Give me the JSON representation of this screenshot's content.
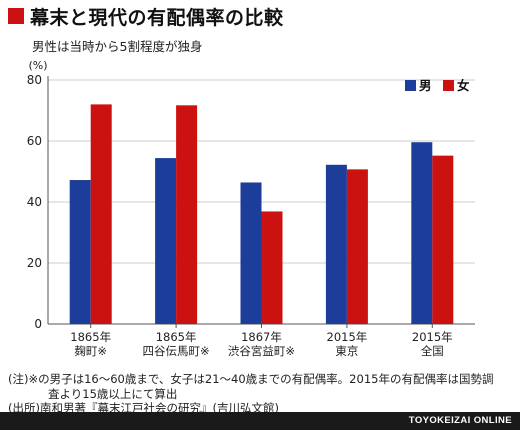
{
  "title": "幕末と現代の有配偶率の比較",
  "subtitle": "男性は当時から5割程度が独身",
  "colors": {
    "male": "#1c3d9a",
    "female": "#cc1111",
    "title_mark": "#cc1111",
    "axis": "#555555",
    "grid": "#cccccc"
  },
  "chart_data": {
    "type": "bar",
    "unit_label": "(%)",
    "ylim": [
      0,
      80
    ],
    "yticks": [
      0,
      20,
      40,
      60,
      80
    ],
    "grid": true,
    "legend_position": "top-right",
    "categories": [
      [
        "1865年",
        "麹町※"
      ],
      [
        "1865年",
        "四谷伝馬町※"
      ],
      [
        "1867年",
        "渋谷宮益町※"
      ],
      [
        "2015年",
        "東京"
      ],
      [
        "2015年",
        "全国"
      ]
    ],
    "series": [
      {
        "name": "男",
        "color": "#1c3d9a",
        "values": [
          47.2,
          54.4,
          46.4,
          52.2,
          59.6
        ]
      },
      {
        "name": "女",
        "color": "#cc1111",
        "values": [
          72.0,
          71.7,
          36.9,
          50.7,
          55.2
        ]
      }
    ]
  },
  "notes": [
    "(注)※の男子は16～60歳まで、女子は21～40歳までの有配偶率。2015年の有配偶率は国勢調",
    "査より15歳以上にて算出",
    "(出所)南和男著『幕末江戸社会の研究』(吉川弘文館)"
  ],
  "brand": "TOYOKEIZAI ONLINE"
}
